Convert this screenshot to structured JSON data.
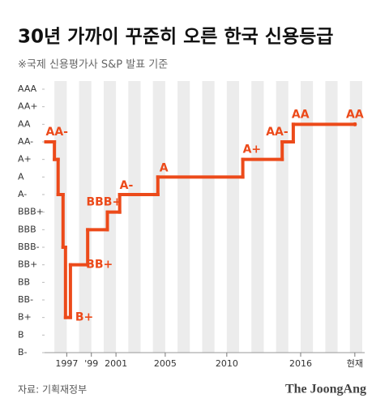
{
  "chart_data": {
    "type": "step",
    "title": "30년 가까이 꾸준히 오른 한국 신용등급",
    "subtitle": "※국제 신용평가사 S&P 발표 기준",
    "source": "자료: 기획재정부",
    "logo": "The JoongAng",
    "color": "#ec4a1a",
    "x": [
      1995.3,
      1996.0,
      1996.3,
      1996.7,
      1996.9,
      1997.3,
      1998.7,
      2000.3,
      2001.3,
      2004.4,
      2011.3,
      2014.5,
      2015.4,
      2020.4
    ],
    "values": [
      12,
      11,
      9,
      6,
      2,
      5,
      7,
      8,
      9,
      10,
      11,
      12,
      13,
      13
    ],
    "value_labels": [
      "AA-",
      null,
      null,
      null,
      "B+",
      "BB+",
      null,
      "BBB+",
      "A-",
      "A",
      "A+",
      "AA-",
      "AA",
      "AA"
    ],
    "xlim": [
      1995.2,
      2021.2
    ],
    "xticks": [
      1997,
      {
        "value": 1999,
        "label": "'99"
      },
      2001,
      2005,
      2010,
      2016,
      {
        "value": 2020.4,
        "label": "현재"
      }
    ],
    "ylim": [
      0,
      15
    ],
    "yticks": [
      {
        "value": 15,
        "label": "AAA"
      },
      {
        "value": 14,
        "label": "AA+"
      },
      {
        "value": 13,
        "label": "AA"
      },
      {
        "value": 12,
        "label": "AA-"
      },
      {
        "value": 11,
        "label": "A+"
      },
      {
        "value": 10,
        "label": "A"
      },
      {
        "value": 9,
        "label": "A-"
      },
      {
        "value": 8,
        "label": "BBB+"
      },
      {
        "value": 7,
        "label": "BBB"
      },
      {
        "value": 6,
        "label": "BBB-"
      },
      {
        "value": 5,
        "label": "BB+"
      },
      {
        "value": 4,
        "label": "BB"
      },
      {
        "value": 3,
        "label": "BB-"
      },
      {
        "value": 2,
        "label": "B+"
      },
      {
        "value": 1,
        "label": "B"
      },
      {
        "value": 0,
        "label": "B-"
      }
    ]
  }
}
